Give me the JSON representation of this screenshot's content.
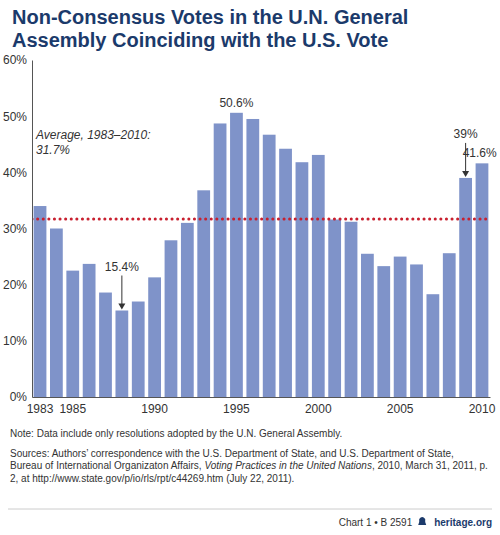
{
  "chart_data": {
    "type": "bar",
    "title": "Non-Consensus Votes in the U.N. General Assembly Coinciding with the U.S. Vote",
    "categories": [
      "1983",
      null,
      "1985",
      null,
      null,
      null,
      null,
      "1990",
      null,
      null,
      null,
      null,
      "1995",
      null,
      null,
      null,
      null,
      "2000",
      null,
      null,
      null,
      null,
      "2005",
      null,
      null,
      null,
      null,
      "2010"
    ],
    "values": [
      34,
      30,
      22.5,
      23.7,
      18.6,
      15.4,
      17,
      21.3,
      27.9,
      31,
      36.8,
      48.7,
      50.6,
      49.5,
      46.7,
      44.2,
      41.8,
      43.1,
      31.6,
      31.2,
      25.5,
      23.3,
      25,
      23.6,
      18.3,
      25.6,
      39,
      41.6
    ],
    "value_labels": [
      null,
      null,
      null,
      null,
      null,
      "15.4%",
      null,
      null,
      null,
      null,
      null,
      null,
      "50.6%",
      null,
      null,
      null,
      null,
      null,
      null,
      null,
      null,
      null,
      null,
      null,
      null,
      null,
      "39%",
      "41.6%"
    ],
    "data_labels": true,
    "color": "#7f93c9",
    "ylim": [
      0,
      60
    ],
    "yticks": [
      {
        "value": 0,
        "label": "0%"
      },
      {
        "value": 10,
        "label": "10%"
      },
      {
        "value": 20,
        "label": "20%"
      },
      {
        "value": 30,
        "label": "30%"
      },
      {
        "value": 40,
        "label": "40%"
      },
      {
        "value": 50,
        "label": "50%"
      },
      {
        "value": 60,
        "label": "60%"
      }
    ],
    "grid": false,
    "reference_line": {
      "value": 31.7,
      "label": [
        "Average, 1983–2010:",
        "31.7%"
      ],
      "color": "#c8202f",
      "line_style": "dotted"
    },
    "note": "Note: Data include only resolutions adopted by the U.N. General Assembly.",
    "sources": [
      "Sources: Authors’ correspondence with the U.S. Department of State, and U.S. Department of State, Bureau of International Organizaton Affairs, ",
      "Voting Practices in the United Nations",
      ", 2010, March 31, 2011, p. 2, at http://www.state.gov/p/io/rls/rpt/c44269.htm (July 22, 2011)."
    ],
    "footer": [
      "Chart 1 • B 2591",
      "heritage.org"
    ]
  }
}
